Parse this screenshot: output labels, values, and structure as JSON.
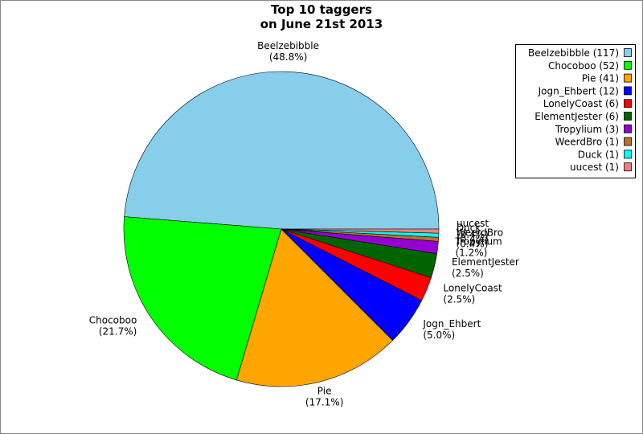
{
  "chart_data": {
    "type": "pie",
    "title": "Top 10 taggers",
    "subtitle": "on June 21st 2013",
    "categories": [
      "Beelzebibble",
      "Chocoboo",
      "Pie",
      "Jogn_Ehbert",
      "LonelyCoast",
      "ElementJester",
      "Tropylium",
      "WeerdBro",
      "Duck",
      "uucest"
    ],
    "values": [
      117,
      52,
      41,
      12,
      6,
      6,
      3,
      1,
      1,
      1
    ],
    "percent_labels": [
      "(48.8%)",
      "(21.7%)",
      "(17.1%)",
      "(5.0%)",
      "(2.5%)",
      "(2.5%)",
      "(1.2%)",
      "(0.4%)",
      "(0.4%)",
      "(0.4%)"
    ],
    "legend_labels": [
      "Beelzebibble (117)",
      "Chocoboo (52)",
      "Pie (41)",
      "Jogn_Ehbert (12)",
      "LonelyCoast (6)",
      "ElementJester (6)",
      "Tropylium (3)",
      "WeerdBro (1)",
      "Duck (1)",
      "uucest (1)"
    ],
    "colors": [
      "#87ceeb",
      "#00ff00",
      "#ffa500",
      "#0000ff",
      "#ff0000",
      "#006400",
      "#9400d3",
      "#b8732e",
      "#00ffff",
      "#f08080"
    ],
    "legend": "top-right"
  }
}
